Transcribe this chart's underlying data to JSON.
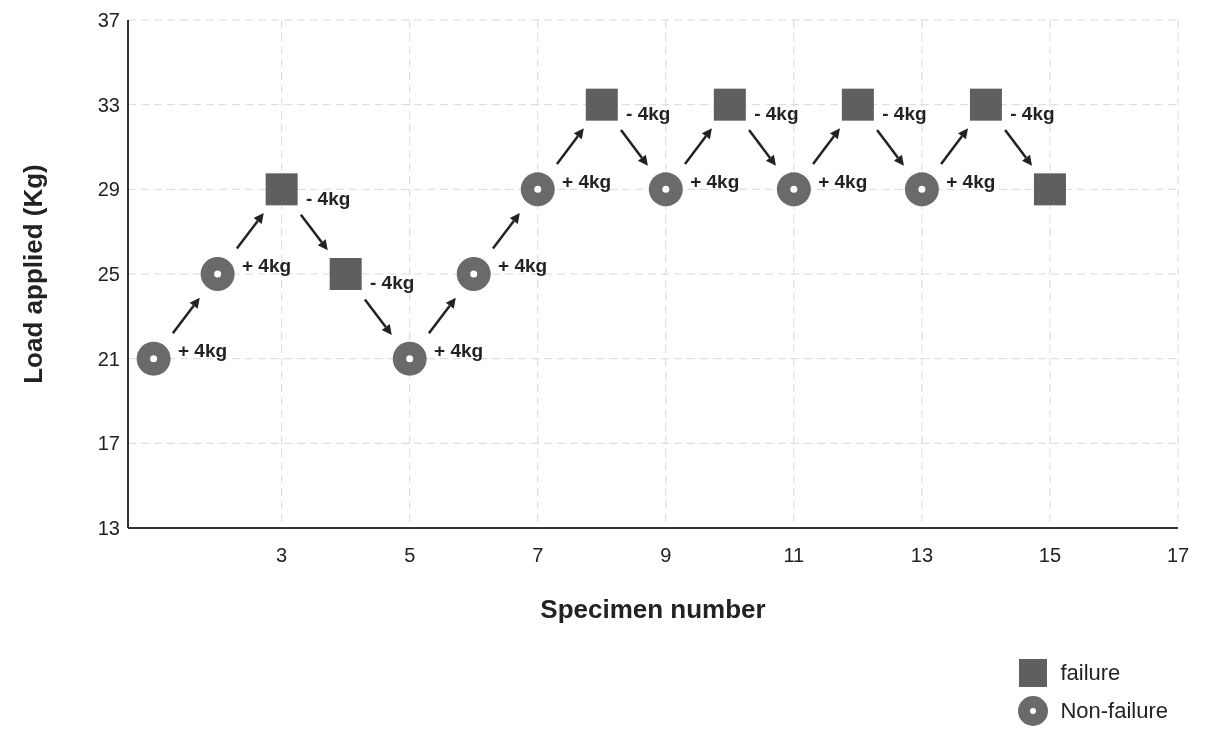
{
  "chart_data": {
    "type": "scatter",
    "xlabel": "Specimen number",
    "ylabel": "Load applied (Kg)",
    "xlim": [
      0.6,
      17
    ],
    "xticks": [
      3,
      5,
      7,
      9,
      11,
      13,
      15,
      17
    ],
    "ylim": [
      13,
      37
    ],
    "yticks": [
      13,
      17,
      21,
      25,
      29,
      33,
      37
    ],
    "grid": true,
    "legend": "bottom right",
    "series": [
      {
        "name": "failure",
        "color": "#5f5f5f",
        "marker": "square",
        "x": [
          3,
          4,
          8,
          10,
          12,
          14,
          15
        ],
        "values": [
          29,
          25,
          33,
          33,
          33,
          33,
          29
        ]
      },
      {
        "name": "Non-failure",
        "color": "#6a6a6a",
        "marker": "circle",
        "x": [
          1,
          2,
          5,
          6,
          7,
          9,
          11,
          13
        ],
        "values": [
          21,
          25,
          21,
          25,
          29,
          29,
          29,
          29
        ]
      }
    ],
    "annotations": [
      "+ 4kg",
      "+ 4kg",
      "- 4kg",
      "- 4kg",
      "+ 4kg",
      "+ 4kg",
      "+ 4kg",
      "- 4kg",
      "+ 4kg",
      "- 4kg",
      "+ 4kg",
      "- 4kg",
      "+ 4kg",
      "- 4kg"
    ]
  }
}
